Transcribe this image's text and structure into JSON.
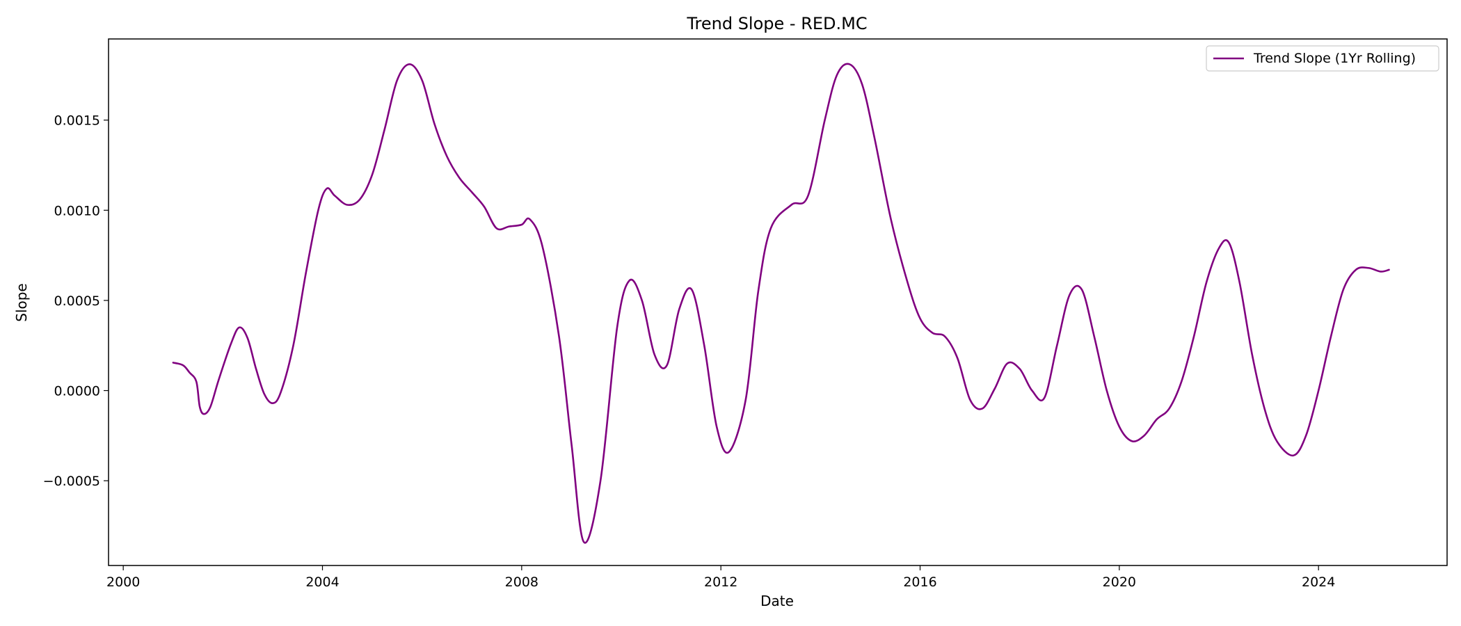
{
  "chart_data": {
    "type": "line",
    "title": "Trend Slope - RED.MC",
    "xlabel": "Date",
    "ylabel": "Slope",
    "xlim": [
      "1999-09-15",
      "2026-08-01"
    ],
    "ylim": [
      -0.00097,
      0.00195
    ],
    "xticks": [
      "2000-01-01",
      "2004-01-01",
      "2008-01-01",
      "2012-01-01",
      "2016-01-01",
      "2020-01-01",
      "2024-01-01"
    ],
    "xtick_labels": [
      "2000",
      "2004",
      "2008",
      "2012",
      "2016",
      "2020",
      "2024"
    ],
    "yticks": [
      -0.0005,
      0.0,
      0.0005,
      0.001,
      0.0015
    ],
    "ytick_labels": [
      "−0.0005",
      "0.0000",
      "0.0005",
      "0.0010",
      "0.0015"
    ],
    "grid": false,
    "legend_position": "top-right",
    "series": [
      {
        "name": "Trend Slope (1Yr Rolling)",
        "color": "#800080",
        "points": [
          [
            "2001-01-01",
            0.000155
          ],
          [
            "2001-03-15",
            0.00014
          ],
          [
            "2001-05-01",
            0.0001
          ],
          [
            "2001-06-20",
            5e-05
          ],
          [
            "2001-07-15",
            -9e-05
          ],
          [
            "2001-08-15",
            -0.00013
          ],
          [
            "2001-10-01",
            -9e-05
          ],
          [
            "2001-12-01",
            6e-05
          ],
          [
            "2002-03-01",
            0.00026
          ],
          [
            "2002-05-01",
            0.00035
          ],
          [
            "2002-07-01",
            0.00029
          ],
          [
            "2002-09-01",
            0.00012
          ],
          [
            "2002-11-01",
            -2e-05
          ],
          [
            "2003-01-01",
            -7e-05
          ],
          [
            "2003-03-01",
            -1e-05
          ],
          [
            "2003-06-01",
            0.00025
          ],
          [
            "2003-09-01",
            0.00065
          ],
          [
            "2003-12-01",
            0.001
          ],
          [
            "2004-02-01",
            0.00112
          ],
          [
            "2004-04-01",
            0.00108
          ],
          [
            "2004-07-01",
            0.00103
          ],
          [
            "2004-10-01",
            0.00106
          ],
          [
            "2005-01-01",
            0.0012
          ],
          [
            "2005-04-01",
            0.00145
          ],
          [
            "2005-07-01",
            0.00172
          ],
          [
            "2005-10-01",
            0.00181
          ],
          [
            "2006-01-01",
            0.00172
          ],
          [
            "2006-04-01",
            0.00148
          ],
          [
            "2006-07-01",
            0.0013
          ],
          [
            "2006-10-01",
            0.00118
          ],
          [
            "2007-01-01",
            0.0011
          ],
          [
            "2007-04-01",
            0.00102
          ],
          [
            "2007-07-01",
            0.0009
          ],
          [
            "2007-10-01",
            0.00091
          ],
          [
            "2008-01-01",
            0.00092
          ],
          [
            "2008-03-01",
            0.00095
          ],
          [
            "2008-06-01",
            0.0008
          ],
          [
            "2008-10-01",
            0.0003
          ],
          [
            "2009-01-01",
            -0.0003
          ],
          [
            "2009-04-01",
            -0.00084
          ],
          [
            "2009-08-01",
            -0.0005
          ],
          [
            "2009-12-01",
            0.00035
          ],
          [
            "2010-03-01",
            0.00061
          ],
          [
            "2010-06-01",
            0.0005
          ],
          [
            "2010-09-01",
            0.0002
          ],
          [
            "2010-12-01",
            0.00014
          ],
          [
            "2011-03-01",
            0.00045
          ],
          [
            "2011-06-01",
            0.00056
          ],
          [
            "2011-09-01",
            0.00025
          ],
          [
            "2011-12-01",
            -0.0002
          ],
          [
            "2012-03-01",
            -0.00034
          ],
          [
            "2012-07-01",
            -5e-05
          ],
          [
            "2012-10-01",
            0.00055
          ],
          [
            "2013-01-01",
            0.0009
          ],
          [
            "2013-06-01",
            0.00103
          ],
          [
            "2013-10-01",
            0.00108
          ],
          [
            "2014-02-01",
            0.0015
          ],
          [
            "2014-05-01",
            0.00175
          ],
          [
            "2014-08-01",
            0.00181
          ],
          [
            "2014-11-01",
            0.0017
          ],
          [
            "2015-02-01",
            0.0014
          ],
          [
            "2015-06-01",
            0.00095
          ],
          [
            "2015-10-01",
            0.0006
          ],
          [
            "2016-01-01",
            0.0004
          ],
          [
            "2016-04-01",
            0.00032
          ],
          [
            "2016-07-01",
            0.0003
          ],
          [
            "2016-10-01",
            0.00018
          ],
          [
            "2017-01-01",
            -5e-05
          ],
          [
            "2017-04-01",
            -0.0001
          ],
          [
            "2017-07-01",
            1e-05
          ],
          [
            "2017-10-01",
            0.00015
          ],
          [
            "2018-01-01",
            0.00012
          ],
          [
            "2018-04-01",
            0.0
          ],
          [
            "2018-07-01",
            -4e-05
          ],
          [
            "2018-10-01",
            0.00025
          ],
          [
            "2019-01-01",
            0.00053
          ],
          [
            "2019-04-01",
            0.00056
          ],
          [
            "2019-07-01",
            0.0003
          ],
          [
            "2019-10-01",
            0.0
          ],
          [
            "2020-01-01",
            -0.0002
          ],
          [
            "2020-04-01",
            -0.00028
          ],
          [
            "2020-07-01",
            -0.00025
          ],
          [
            "2020-10-01",
            -0.00016
          ],
          [
            "2021-01-01",
            -0.0001
          ],
          [
            "2021-04-01",
            5e-05
          ],
          [
            "2021-07-01",
            0.0003
          ],
          [
            "2021-10-01",
            0.0006
          ],
          [
            "2022-01-01",
            0.00079
          ],
          [
            "2022-03-15",
            0.00082
          ],
          [
            "2022-06-01",
            0.0006
          ],
          [
            "2022-09-01",
            0.0002
          ],
          [
            "2022-12-01",
            -0.0001
          ],
          [
            "2023-03-01",
            -0.00028
          ],
          [
            "2023-07-01",
            -0.00036
          ],
          [
            "2023-10-01",
            -0.00025
          ],
          [
            "2024-01-01",
            0.0
          ],
          [
            "2024-04-01",
            0.0003
          ],
          [
            "2024-07-01",
            0.00056
          ],
          [
            "2024-10-01",
            0.00067
          ],
          [
            "2025-01-01",
            0.00068
          ],
          [
            "2025-04-01",
            0.00066
          ],
          [
            "2025-06-01",
            0.00067
          ]
        ]
      }
    ]
  }
}
